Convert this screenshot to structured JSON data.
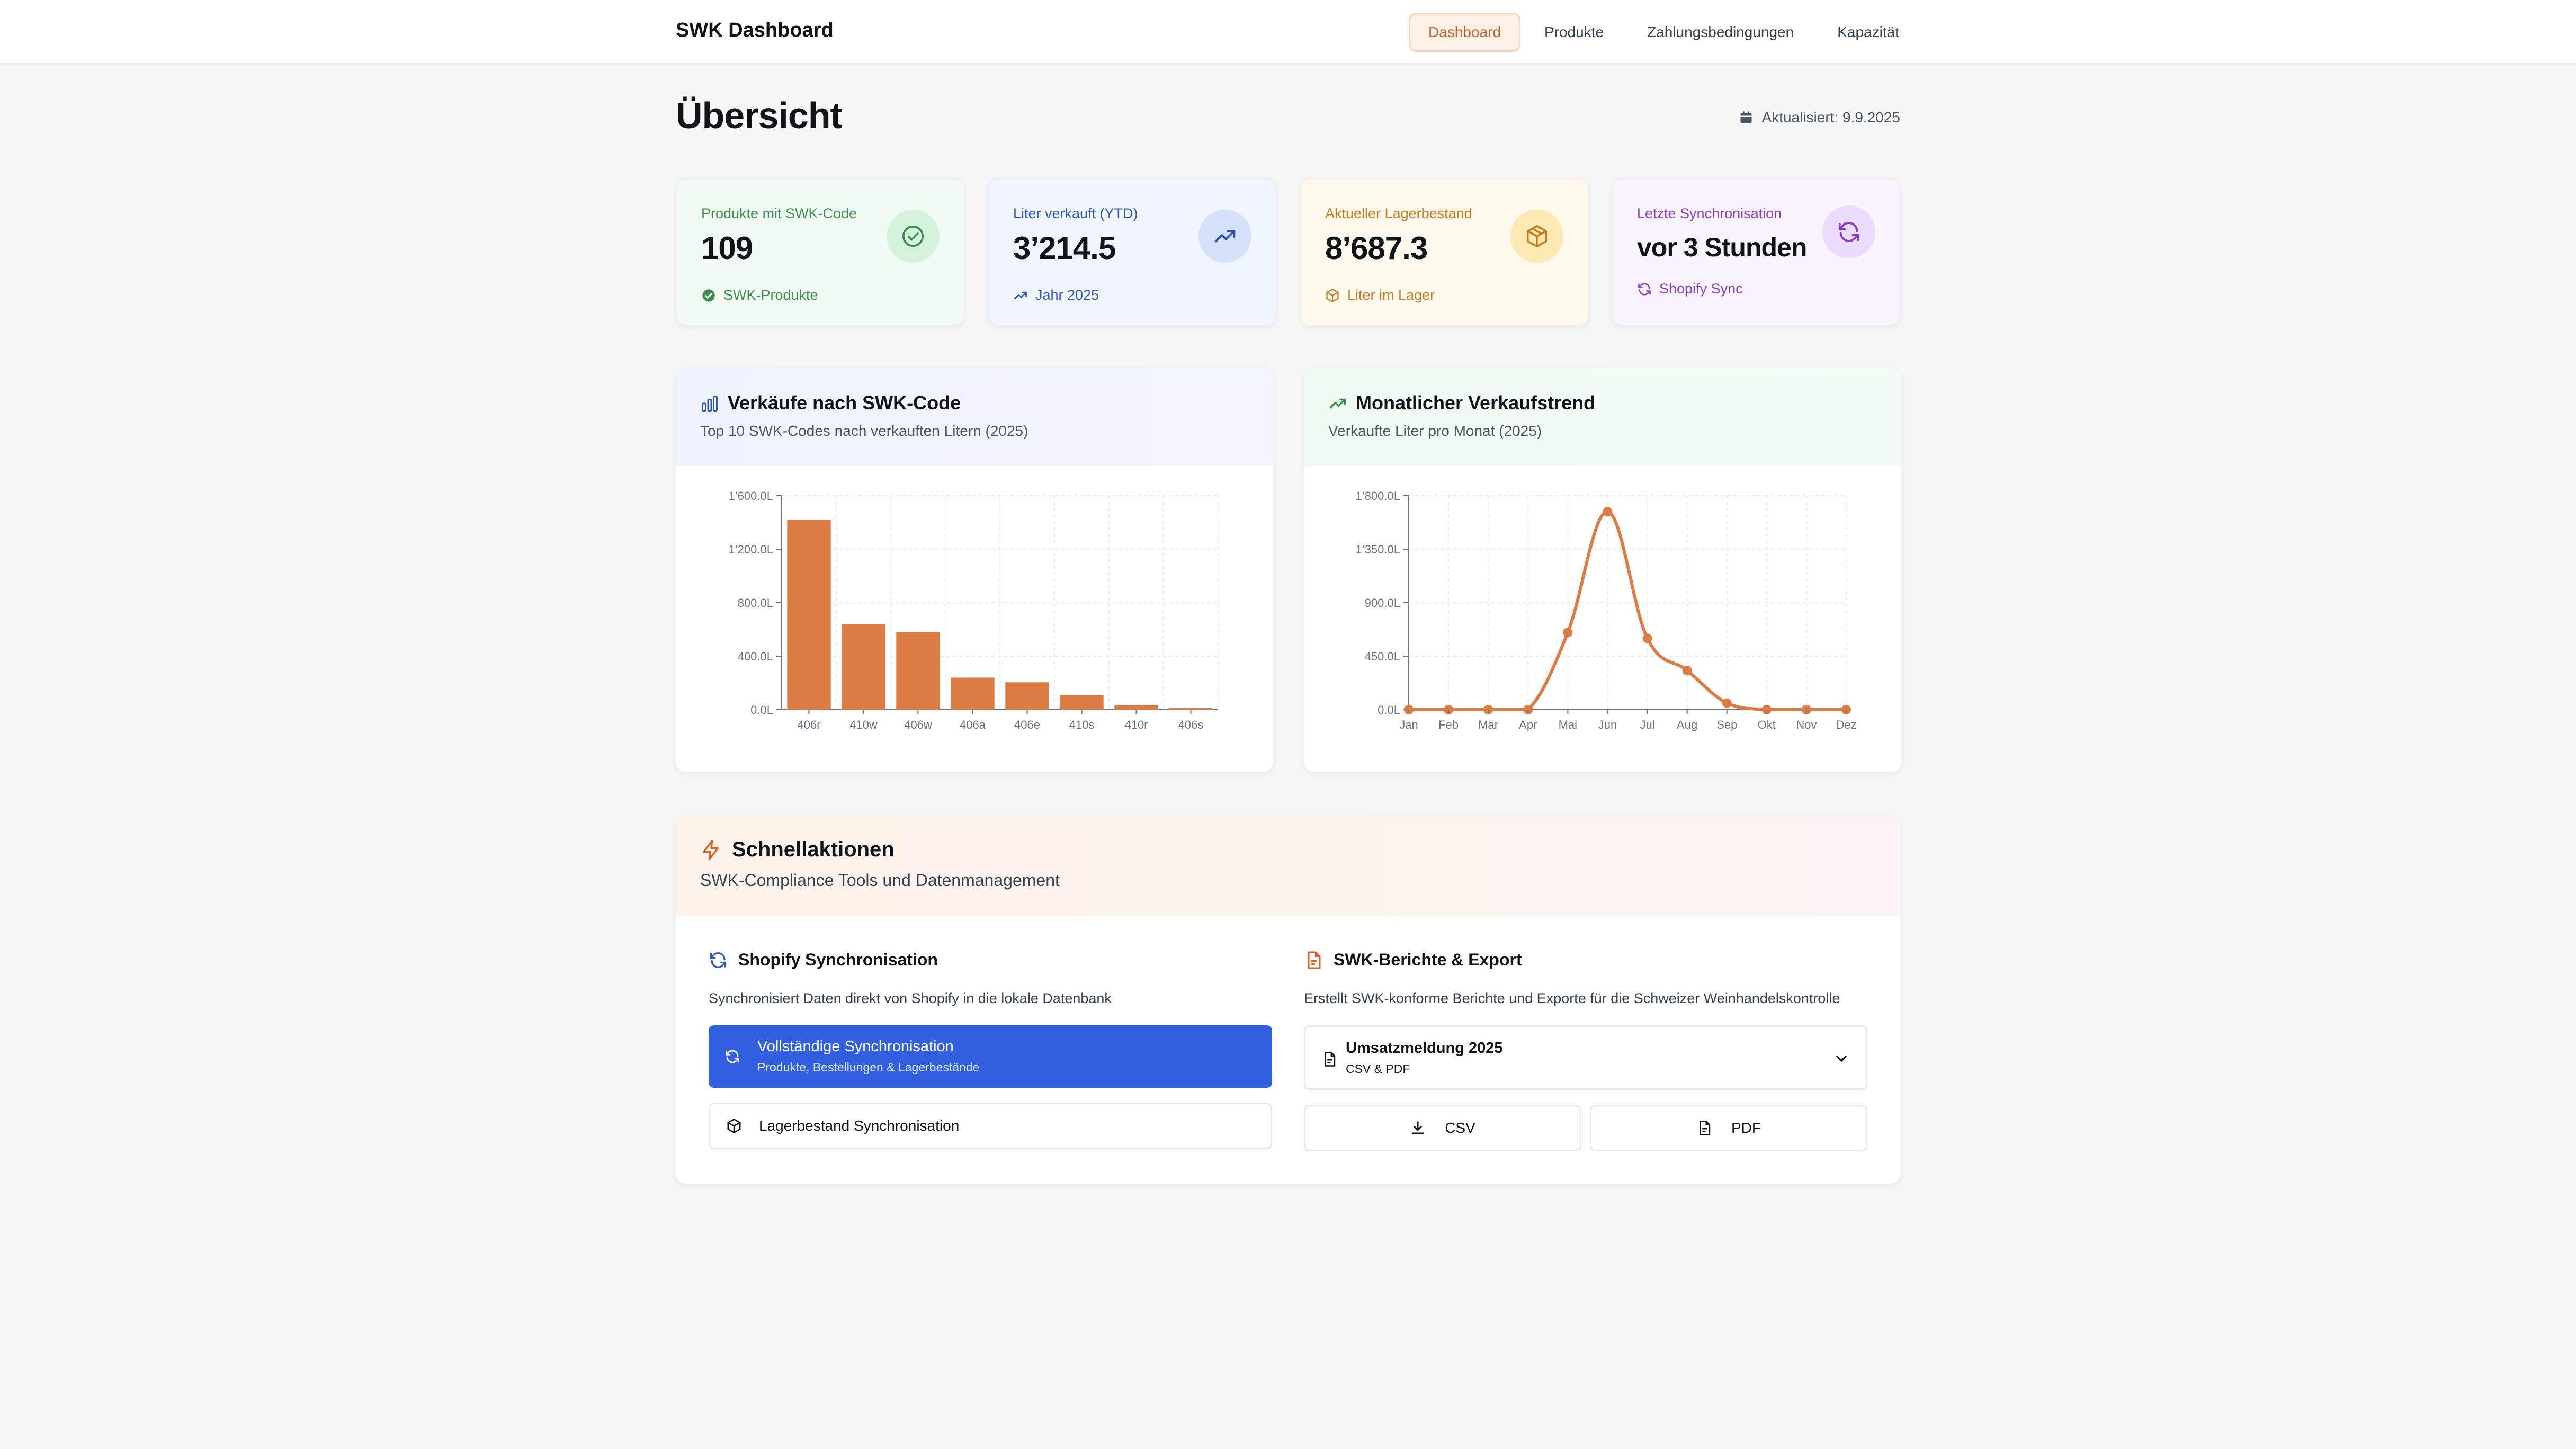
{
  "header": {
    "brand": "SWK Dashboard",
    "nav": [
      {
        "label": "Dashboard",
        "active": true
      },
      {
        "label": "Produkte",
        "active": false
      },
      {
        "label": "Zahlungsbedingungen",
        "active": false
      },
      {
        "label": "Kapazität",
        "active": false
      }
    ]
  },
  "page": {
    "title": "Übersicht",
    "updated": "Aktualisiert: 9.9.2025"
  },
  "stats": [
    {
      "label": "Produkte mit SWK-Code",
      "value": "109",
      "foot": "SWK-Produkte",
      "icon": "check-circle-icon",
      "color": "#3e8e4f",
      "bg": "#f1fbf3",
      "icon_bg": "#d4f3dc"
    },
    {
      "label": "Liter verkauft (YTD)",
      "value": "3’214.5",
      "foot": "Jahr 2025",
      "icon": "trending-up-icon",
      "color": "#2f56b4",
      "bg": "#f1f5ff",
      "icon_bg": "#d6e2fc"
    },
    {
      "label": "Aktueller Lagerbestand",
      "value": "8’687.3",
      "foot": "Liter im Lager",
      "icon": "box-icon",
      "color": "#c57a1f",
      "bg": "#fef9ec",
      "icon_bg": "#fce9b3"
    },
    {
      "label": "Letzte Synchronisation",
      "value": "vor 3 Stunden",
      "foot": "Shopify Sync",
      "icon": "refresh-icon",
      "color": "#8b3fc4",
      "bg": "#f9f4fe",
      "icon_bg": "#ecdcfb"
    }
  ],
  "bar_card": {
    "title": "Verkäufe nach SWK-Code",
    "subtitle": "Top 10 SWK-Codes nach verkauften Litern (2025)"
  },
  "line_card": {
    "title": "Monatlicher Verkaufstrend",
    "subtitle": "Verkaufte Liter pro Monat (2025)"
  },
  "chart_data": [
    {
      "type": "bar",
      "categories": [
        "406r",
        "410w",
        "406w",
        "406a",
        "406e",
        "410s",
        "410r",
        "406s"
      ],
      "values": [
        1420,
        640,
        580,
        240,
        205,
        110,
        35,
        12
      ],
      "ylim": [
        0,
        1600
      ],
      "yticks": [
        "0.0L",
        "400.0L",
        "800.0L",
        "1’200.0L",
        "1’600.0L"
      ],
      "ytick_values": [
        0,
        400,
        800,
        1200,
        1600
      ],
      "color": "#dc7c45",
      "grid": true
    },
    {
      "type": "line",
      "categories": [
        "Jan",
        "Feb",
        "Mär",
        "Apr",
        "Mai",
        "Jun",
        "Jul",
        "Aug",
        "Sep",
        "Okt",
        "Nov",
        "Dez"
      ],
      "values": [
        0,
        0,
        0,
        0,
        650,
        1665,
        600,
        330,
        55,
        0,
        0,
        0
      ],
      "ylim": [
        0,
        1800
      ],
      "yticks": [
        "0.0L",
        "450.0L",
        "900.0L",
        "1’350.0L",
        "1’800.0L"
      ],
      "ytick_values": [
        0,
        450,
        900,
        1350,
        1800
      ],
      "color": "#dc7c45",
      "grid": true
    }
  ],
  "quick_actions": {
    "title": "Schnellaktionen",
    "subtitle": "SWK-Compliance Tools und Datenmanagement",
    "shopify": {
      "title": "Shopify Synchronisation",
      "desc": "Synchronisiert Daten direkt von Shopify in die lokale Datenbank",
      "full_sync_label": "Vollständige Synchronisation",
      "full_sync_sub": "Produkte, Bestellungen & Lagerbestände",
      "stock_sync_label": "Lagerbestand Synchronisation"
    },
    "reports": {
      "title": "SWK-Berichte & Export",
      "desc": "Erstellt SWK-konforme Berichte und Exporte für die Schweizer Weinhandelskontrolle",
      "select_label": "Umsatzmeldung 2025",
      "select_sub": "CSV & PDF",
      "csv_label": "CSV",
      "pdf_label": "PDF"
    }
  }
}
